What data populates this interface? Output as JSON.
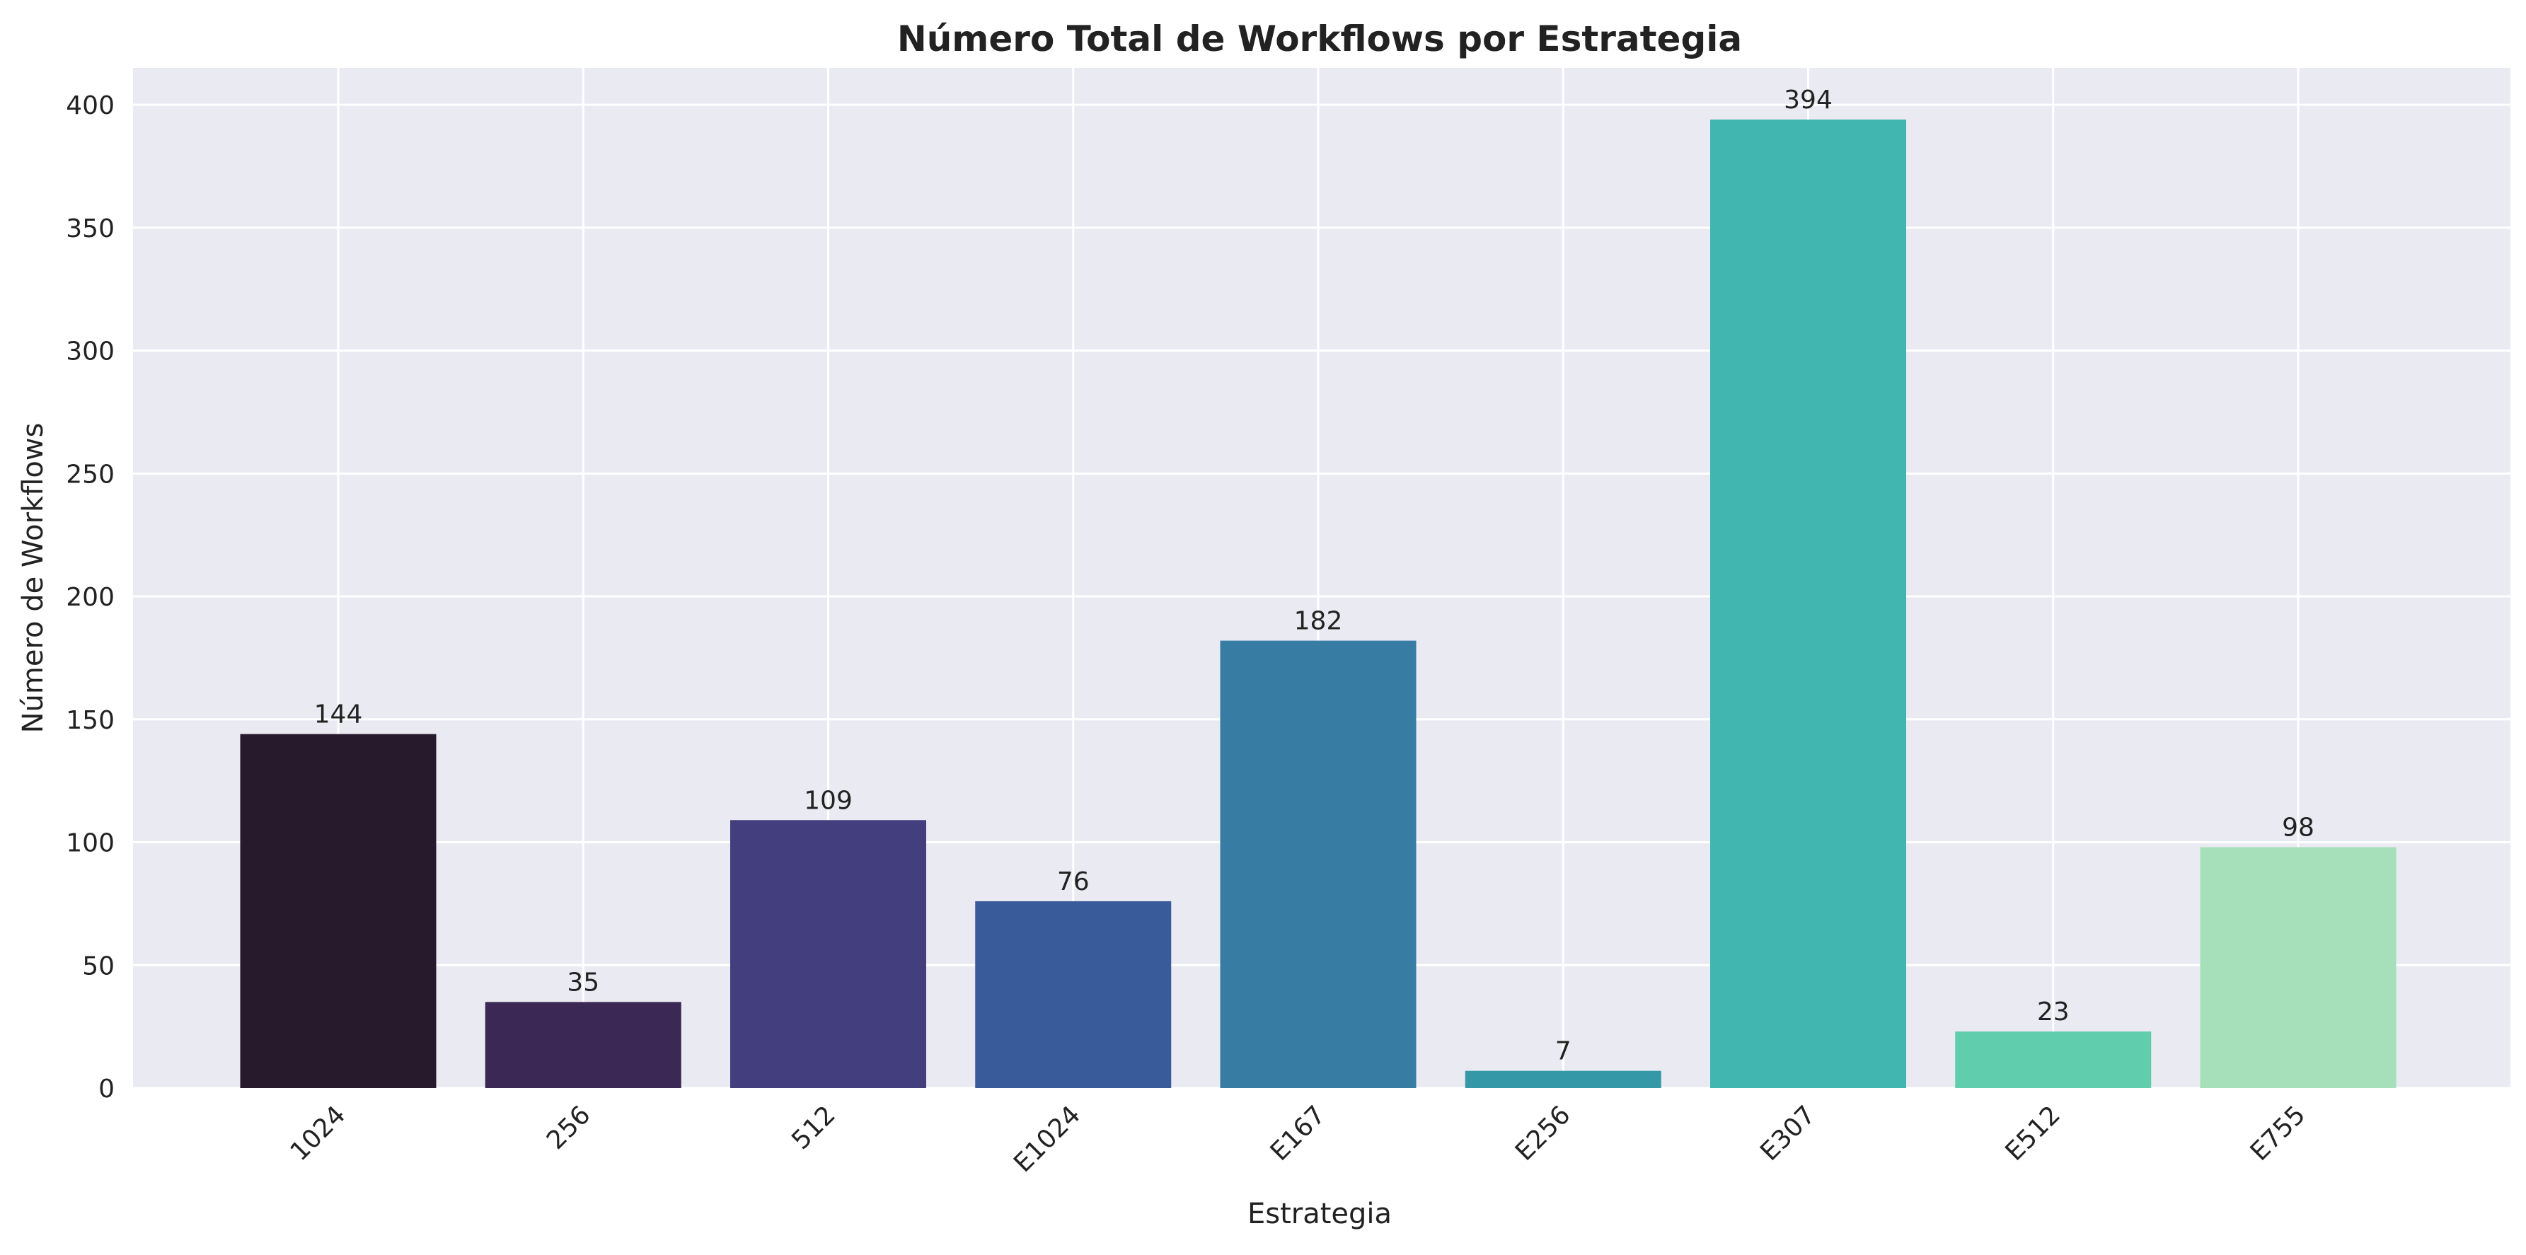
{
  "chart_data": {
    "type": "bar",
    "title": "Número Total de Workflows por Estrategia",
    "xlabel": "Estrategia",
    "ylabel": "Número de Workflows",
    "categories": [
      "1024",
      "256",
      "512",
      "E1024",
      "E167",
      "E256",
      "E307",
      "E512",
      "E755"
    ],
    "values": [
      144,
      35,
      109,
      76,
      182,
      7,
      394,
      23,
      98
    ],
    "colors": [
      "#261a2c",
      "#3c2854",
      "#433e7e",
      "#3a5b9a",
      "#367ca3",
      "#3498a7",
      "#41b5af",
      "#60cdac",
      "#a6e0bb"
    ],
    "ylim": [
      0,
      415
    ],
    "yticks": [
      0,
      50,
      100,
      150,
      200,
      250,
      300,
      350,
      400
    ],
    "grid": true,
    "plot_background": "#eaeaf2",
    "x_tick_rotation_deg": 45
  }
}
